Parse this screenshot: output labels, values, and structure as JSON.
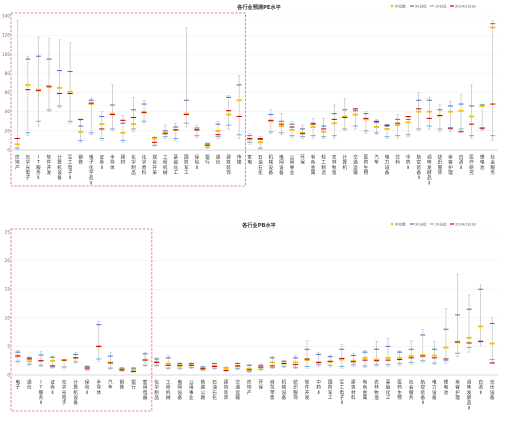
{
  "legend": [
    {
      "label": "中位数",
      "color": "#f2c200",
      "shape": "diamond"
    },
    {
      "label": "90分位",
      "color": "#4472c4",
      "shape": "dash"
    },
    {
      "label": "10分位",
      "color": "#7fa7d9",
      "shape": "dash"
    },
    {
      "label": "2024/10/18",
      "color": "#c00000",
      "shape": "dash"
    }
  ],
  "colors": {
    "range": "#b7b7b7",
    "median": "#f2c200",
    "p90": "#4472c4",
    "p10": "#7fa7d9",
    "current": "#c00000",
    "highlight": "#e06666"
  },
  "chart_data": [
    {
      "type": "box",
      "title": "各行业预测PE水平",
      "ylim": [
        0,
        140
      ],
      "yticks": [
        0,
        20,
        40,
        60,
        80,
        100,
        120,
        140
      ],
      "highlight_range": [
        "房地产",
        "传媒"
      ],
      "categories": [
        "房地产",
        "光学光电子",
        "IT服务Ⅱ",
        "软件开发",
        "计算机设备",
        "军工电子Ⅱ",
        "钢铁",
        "电子化学品Ⅱ",
        "证券Ⅱ",
        "半导体",
        "建材",
        "化学制品",
        "化学原料",
        "煤炭开采",
        "工程机械",
        "基础化工",
        "国防军工",
        "保险Ⅱ",
        "银行",
        "通信",
        "建筑装饰",
        "传媒",
        "家电",
        "石油石化",
        "机械设备",
        "电网设备",
        "公用事业",
        "环保",
        "有色金属",
        "轻工制造",
        "农林牧渔",
        "计算机",
        "交通运输",
        "医药生物",
        "汽车",
        "电力设备",
        "饮料",
        "中药Ⅱ",
        "航空装备Ⅱ",
        "调味发酵品Ⅱ",
        "纺织服饰",
        "美容护理",
        "白酒Ⅱ",
        "医疗研究",
        "锂电池",
        "社会服务"
      ],
      "series": [
        {
          "name": "最大值",
          "values": [
            135,
            98,
            118,
            117,
            115,
            112,
            31,
            54,
            40,
            68,
            36,
            55,
            52,
            14,
            26,
            28,
            128,
            26,
            7,
            30,
            57,
            78,
            17,
            14,
            42,
            38,
            30,
            26,
            33,
            33,
            47,
            54,
            43,
            40,
            32,
            27,
            37,
            35,
            60,
            55,
            48,
            51,
            58,
            68,
            48,
            135
          ]
        },
        {
          "name": "中位数",
          "values": [
            6,
            68,
            63,
            67,
            65,
            61,
            19,
            48,
            27,
            38,
            18,
            27,
            40,
            12,
            18,
            21,
            38,
            21,
            6,
            20,
            37,
            52,
            11,
            8,
            30,
            25,
            21,
            18,
            24,
            19,
            28,
            35,
            37,
            32,
            24,
            22,
            26,
            29,
            40,
            40,
            36,
            40,
            41,
            35,
            46,
            128
          ]
        },
        {
          "name": "90分位",
          "values": [
            12,
            95,
            98,
            95,
            83,
            82,
            25,
            52,
            35,
            47,
            28,
            42,
            48,
            13,
            20,
            24,
            52,
            23,
            7,
            27,
            55,
            68,
            15,
            11,
            37,
            30,
            27,
            22,
            28,
            25,
            38,
            42,
            41,
            38,
            29,
            25,
            32,
            32,
            52,
            52,
            42,
            46,
            48,
            46,
            47,
            132
          ]
        },
        {
          "name": "10分位",
          "values": [
            2,
            18,
            30,
            42,
            46,
            30,
            10,
            18,
            12,
            22,
            10,
            22,
            30,
            5,
            14,
            12,
            28,
            15,
            3,
            14,
            26,
            16,
            8,
            2,
            19,
            18,
            15,
            14,
            15,
            14,
            15,
            22,
            25,
            20,
            18,
            14,
            15,
            16,
            22,
            25,
            22,
            22,
            22,
            15,
            22,
            15
          ]
        },
        {
          "name": "最小值",
          "values": [
            1,
            15,
            25,
            40,
            44,
            28,
            8,
            16,
            10,
            20,
            8,
            19,
            28,
            4,
            12,
            10,
            24,
            13,
            2,
            12,
            22,
            12,
            6,
            1,
            17,
            16,
            13,
            12,
            12,
            12,
            12,
            20,
            22,
            17,
            16,
            12,
            12,
            14,
            20,
            22,
            19,
            19,
            20,
            12,
            20,
            10
          ]
        },
        {
          "name": "2024/10/18",
          "values": [
            12,
            63,
            62,
            66,
            59,
            59,
            32,
            49,
            22,
            37,
            31,
            34,
            39,
            8,
            17,
            21,
            37,
            21,
            5,
            16,
            41,
            35,
            12,
            12,
            31,
            27,
            24,
            17,
            27,
            22,
            32,
            34,
            43,
            33,
            30,
            26,
            28,
            35,
            43,
            33,
            36,
            23,
            19,
            27,
            23,
            48
          ]
        }
      ]
    },
    {
      "type": "box",
      "title": "各行业PB水平",
      "ylim": [
        0,
        25
      ],
      "yticks": [
        0,
        5,
        10,
        15,
        20,
        25
      ],
      "highlight_range": [
        "电子",
        "家用电器"
      ],
      "categories": [
        "电子",
        "通信",
        "IT服务Ⅱ",
        "证券Ⅱ",
        "光学光电子",
        "计算机设备",
        "保险Ⅱ",
        "半导体",
        "汽车",
        "钢铁",
        "银行",
        "家用电器",
        "化学制品",
        "工程机械",
        "电网设备",
        "公用事业",
        "铁路公路",
        "石油石化",
        "建筑装饰",
        "交通运输",
        "房地产",
        "环保",
        "商贸零售",
        "机械设备",
        "纺织服饰",
        "软件开发",
        "中药Ⅱ",
        "国防军工",
        "军工电子Ⅱ",
        "建筑材料",
        "有色金属",
        "农林牧渔",
        "基础化工",
        "医药生物",
        "社会服务",
        "航空装备Ⅱ",
        "电力设备",
        "锂电池",
        "美容护理",
        "调味发酵品Ⅱ",
        "白酒Ⅱ",
        "光伏设备"
      ],
      "series": [
        {
          "name": "最大值",
          "values": [
            4.3,
            3.2,
            4.1,
            3.3,
            2.7,
            3.9,
            1.6,
            9.4,
            4.0,
            1.3,
            1.3,
            3.9,
            3.0,
            3.4,
            2.2,
            2.2,
            1.5,
            2.1,
            1.4,
            2.2,
            1.8,
            1.9,
            3.3,
            2.6,
            3.4,
            6.0,
            3.9,
            3.5,
            5.3,
            3.7,
            4.3,
            5.9,
            6.4,
            4.2,
            6.0,
            7.9,
            5.8,
            11.6,
            17.6,
            14.0,
            15.8,
            10.0
          ]
        },
        {
          "name": "中位数",
          "values": [
            3.4,
            2.4,
            2.5,
            2.5,
            2.6,
            3.0,
            1.3,
            5.0,
            2.2,
            1.0,
            0.9,
            2.7,
            2.3,
            2.0,
            1.6,
            1.7,
            1.2,
            1.6,
            1.2,
            1.5,
            1.1,
            1.3,
            2.2,
            2.0,
            2.2,
            2.6,
            2.2,
            2.3,
            2.7,
            2.5,
            3.0,
            2.7,
            3.0,
            3.0,
            3.3,
            3.5,
            3.4,
            4.8,
            5.7,
            6.5,
            8.5,
            5.5
          ]
        },
        {
          "name": "90分位",
          "values": [
            4.0,
            3.0,
            3.5,
            3.1,
            2.6,
            3.6,
            1.5,
            8.8,
            3.3,
            1.2,
            1.2,
            3.7,
            2.8,
            3.0,
            2.0,
            2.0,
            1.4,
            2.0,
            1.3,
            2.0,
            1.7,
            1.7,
            3.0,
            2.4,
            3.0,
            4.5,
            3.6,
            3.2,
            4.5,
            3.4,
            4.0,
            4.5,
            5.0,
            4.0,
            4.5,
            7.0,
            4.5,
            8.0,
            10.5,
            11.5,
            15.0,
            9.0
          ]
        },
        {
          "name": "10分位",
          "values": [
            2.4,
            1.9,
            1.7,
            1.4,
            1.4,
            2.3,
            0.9,
            2.8,
            1.2,
            0.8,
            0.6,
            1.7,
            1.7,
            1.2,
            1.2,
            1.3,
            0.9,
            1.2,
            0.8,
            1.1,
            0.6,
            1.0,
            1.3,
            1.5,
            1.3,
            1.5,
            1.8,
            1.7,
            1.5,
            1.8,
            1.6,
            1.8,
            1.8,
            2.0,
            2.2,
            2.5,
            2.1,
            2.5,
            3.8,
            4.8,
            5.8,
            2.7
          ]
        },
        {
          "name": "最小值",
          "values": [
            2.1,
            1.6,
            1.5,
            1.2,
            1.2,
            2.0,
            0.8,
            2.4,
            1.0,
            0.6,
            0.5,
            1.5,
            1.5,
            1.0,
            1.0,
            1.1,
            0.7,
            1.0,
            0.6,
            0.9,
            0.5,
            0.8,
            1.1,
            1.3,
            1.1,
            1.2,
            1.5,
            1.4,
            1.2,
            1.5,
            1.3,
            1.5,
            1.5,
            1.7,
            1.9,
            2.2,
            1.8,
            2.0,
            3.2,
            4.0,
            5.2,
            2.2
          ]
        },
        {
          "name": "2024/10/18",
          "values": [
            3.3,
            2.8,
            2.5,
            1.6,
            2.6,
            3.0,
            1.2,
            5.0,
            2.1,
            0.9,
            0.6,
            2.6,
            2.2,
            1.7,
            1.7,
            1.7,
            1.1,
            1.5,
            0.8,
            1.6,
            0.9,
            1.4,
            1.6,
            2.0,
            1.8,
            2.8,
            2.2,
            2.4,
            2.9,
            2.3,
            2.6,
            2.5,
            2.6,
            2.7,
            3.0,
            3.3,
            3.0,
            2.8,
            5.8,
            5.6,
            5.9,
            2.1
          ]
        }
      ]
    }
  ]
}
